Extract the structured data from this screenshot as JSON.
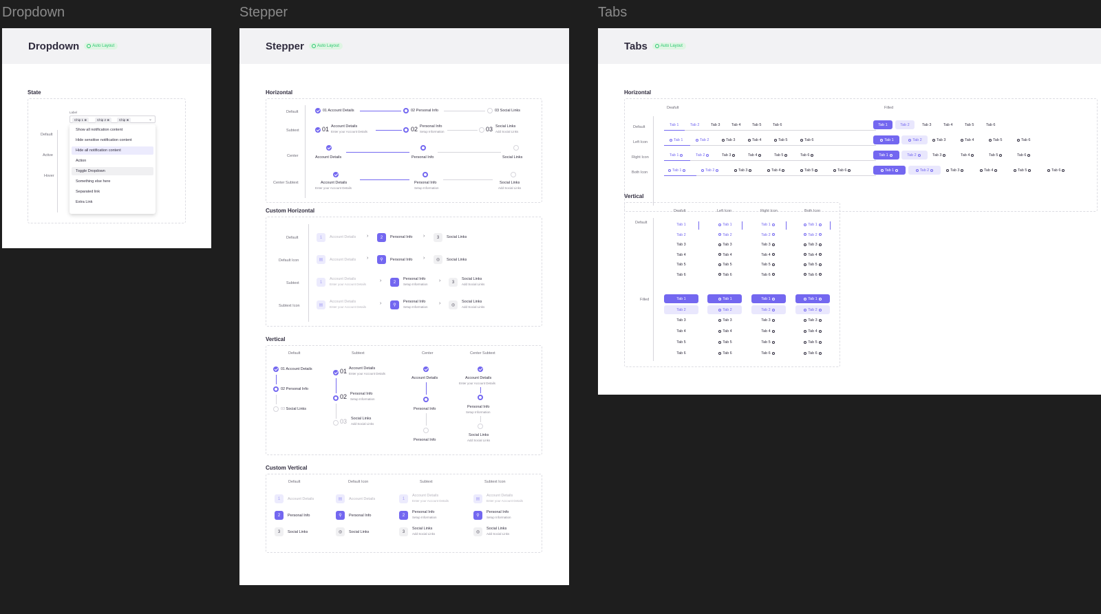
{
  "frames": {
    "dropdown": {
      "label": "Dropdown",
      "title": "Dropdown",
      "badge": "Auto Layout",
      "state_title": "State",
      "states": [
        "Default",
        "Active",
        "Hover"
      ],
      "field_label": "Label",
      "chips": [
        "Chip 1",
        "Chip 2",
        "Chip"
      ],
      "menu": [
        "Show all notification content",
        "Hide sensitive notification content",
        "Hide all notification content",
        "Action",
        "Toggle Dropdown",
        "Something else here",
        "Separated link",
        "Extra Link"
      ]
    },
    "stepper": {
      "label": "Stepper",
      "title": "Stepper",
      "badge": "Auto Layout",
      "sections": [
        "Horizontal",
        "Custom Horizontal",
        "Vertical",
        "Custom Vertical"
      ],
      "h_rows": [
        "Default",
        "Subtext",
        "Center",
        "Center Subtext"
      ],
      "ch_rows": [
        "Default",
        "Default Icon",
        "Subtext",
        "Subtext Icon"
      ],
      "v_cols": [
        "Default",
        "Subtext",
        "Center",
        "Center Subtext"
      ],
      "cv_cols": [
        "Default",
        "Default Icon",
        "Subtext",
        "Subtext Icon"
      ],
      "steps": [
        {
          "num": "01",
          "n": "1",
          "name": "Account Details",
          "sub": "Enter your Account Details"
        },
        {
          "num": "02",
          "n": "2",
          "name": "Personal Info",
          "sub": "Setup Information"
        },
        {
          "num": "03",
          "n": "3",
          "name": "Social Links",
          "sub": "Add Social Links"
        }
      ]
    },
    "tabs": {
      "label": "Tabs",
      "title": "Tabs",
      "badge": "Auto Layout",
      "horizontal": "Horizontal",
      "vertical": "Vertical",
      "h_cols": [
        "Deafult",
        "Filled"
      ],
      "h_rows": [
        "Default",
        "Left Icon",
        "Right Icon",
        "Both Icon"
      ],
      "v_cols": [
        "Deafult",
        "Left Icon",
        "Right Icon",
        "Both Icon"
      ],
      "v_rows": [
        "Default",
        "Filled"
      ],
      "tab_names": [
        "Tab 1",
        "Tab 2",
        "Tab 3",
        "Tab 4",
        "Tab 5",
        "Tab 6"
      ]
    }
  },
  "colors": {
    "primary": "#7367f0",
    "primary_light": "#e9e7fd",
    "success": "#28c76f",
    "canvas": "#1e1e1e"
  }
}
